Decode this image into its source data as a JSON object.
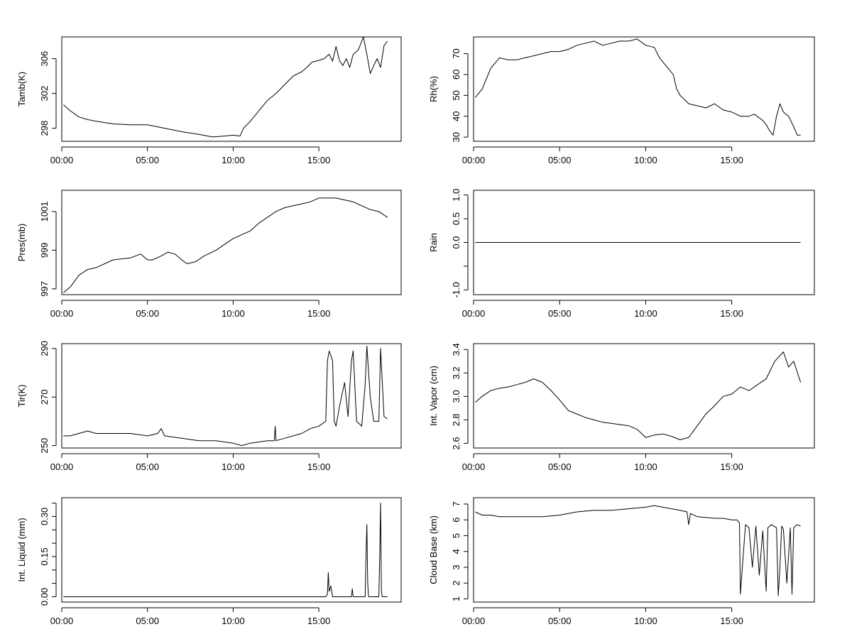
{
  "chart_data": [
    {
      "id": "tamb",
      "type": "line",
      "ylabel": "Tamb(K)",
      "xlim": [
        0,
        19.8
      ],
      "ylim": [
        296.5,
        308.5
      ],
      "xticks": [
        0,
        5,
        10,
        15
      ],
      "xticklabels": [
        "00:00",
        "05:00",
        "10:00",
        "15:00"
      ],
      "yticks": [
        298,
        302,
        306
      ],
      "yticklabels": [
        "298",
        "302",
        "306"
      ],
      "x": [
        0.1,
        0.5,
        1.0,
        1.5,
        2.0,
        3.0,
        4.0,
        5.0,
        6.0,
        7.0,
        8.0,
        8.8,
        9.5,
        10.0,
        10.4,
        10.6,
        11.0,
        11.5,
        12.0,
        12.5,
        13.0,
        13.5,
        14.0,
        14.3,
        14.6,
        15.0,
        15.3,
        15.6,
        15.8,
        16.0,
        16.2,
        16.4,
        16.6,
        16.8,
        17.0,
        17.3,
        17.6,
        17.8,
        18.0,
        18.2,
        18.4,
        18.6,
        18.8,
        19.0
      ],
      "y": [
        300.7,
        300.0,
        299.3,
        299.0,
        298.8,
        298.5,
        298.4,
        298.4,
        298.0,
        297.6,
        297.3,
        297.0,
        297.1,
        297.2,
        297.1,
        298.0,
        298.8,
        300.0,
        301.2,
        302.0,
        303.0,
        304.0,
        304.5,
        305.0,
        305.6,
        305.8,
        306.0,
        306.5,
        305.7,
        307.4,
        305.8,
        305.2,
        306.0,
        305.0,
        306.5,
        307.0,
        308.5,
        306.5,
        304.3,
        305.2,
        306.0,
        305.0,
        307.5,
        308.0
      ]
    },
    {
      "id": "rh",
      "type": "line",
      "ylabel": "Rh(%)",
      "xlim": [
        0,
        19.8
      ],
      "ylim": [
        28,
        78
      ],
      "xticks": [
        0,
        5,
        10,
        15
      ],
      "xticklabels": [
        "00:00",
        "05:00",
        "10:00",
        "15:00"
      ],
      "yticks": [
        30,
        40,
        50,
        60,
        70
      ],
      "yticklabels": [
        "30",
        "40",
        "50",
        "60",
        "70"
      ],
      "x": [
        0.1,
        0.5,
        1.0,
        1.5,
        2.0,
        2.5,
        3.0,
        3.5,
        4.0,
        4.5,
        5.0,
        5.5,
        6.0,
        6.5,
        7.0,
        7.5,
        8.0,
        8.5,
        9.0,
        9.5,
        10.0,
        10.5,
        10.8,
        11.2,
        11.6,
        11.8,
        12.0,
        12.5,
        13.0,
        13.5,
        14.0,
        14.5,
        15.0,
        15.5,
        16.0,
        16.3,
        16.8,
        17.0,
        17.2,
        17.4,
        17.6,
        17.8,
        18.0,
        18.3,
        18.6,
        18.8,
        19.0
      ],
      "y": [
        49,
        53,
        63,
        68,
        67,
        67,
        68,
        69,
        70,
        71,
        71,
        72,
        74,
        75,
        76,
        74,
        75,
        76,
        76,
        77,
        74,
        73,
        68,
        64,
        60,
        53,
        50,
        46,
        45,
        44,
        46,
        43,
        42,
        40,
        40,
        41,
        38,
        36,
        33,
        31,
        40,
        46,
        42,
        40,
        35,
        31,
        31
      ]
    },
    {
      "id": "pres",
      "type": "line",
      "ylabel": "Pres(mb)",
      "xlim": [
        0,
        19.8
      ],
      "ylim": [
        996.7,
        1002.1
      ],
      "xticks": [
        0,
        5,
        10,
        15
      ],
      "xticklabels": [
        "00:00",
        "05:00",
        "10:00",
        "15:00"
      ],
      "yticks": [
        997,
        999,
        1001
      ],
      "yticklabels": [
        "997",
        "999",
        "1001"
      ],
      "x": [
        0.1,
        0.5,
        1.0,
        1.5,
        2.0,
        3.0,
        4.0,
        4.6,
        5.0,
        5.3,
        5.8,
        6.2,
        6.6,
        7.0,
        7.3,
        7.8,
        8.3,
        9.0,
        9.5,
        10.0,
        10.5,
        11.0,
        11.5,
        12.0,
        12.5,
        13.0,
        13.5,
        14.0,
        14.5,
        15.0,
        15.5,
        16.0,
        16.5,
        17.0,
        17.5,
        18.0,
        18.5,
        19.0
      ],
      "y": [
        996.8,
        997.1,
        997.7,
        998.0,
        998.1,
        998.5,
        998.6,
        998.8,
        998.5,
        998.5,
        998.7,
        998.9,
        998.8,
        998.5,
        998.3,
        998.4,
        998.7,
        999.0,
        999.3,
        999.6,
        999.8,
        1000.0,
        1000.4,
        1000.7,
        1001.0,
        1001.2,
        1001.3,
        1001.4,
        1001.5,
        1001.7,
        1001.7,
        1001.7,
        1001.6,
        1001.5,
        1001.3,
        1001.1,
        1001.0,
        1000.7
      ]
    },
    {
      "id": "rain",
      "type": "line",
      "ylabel": "Rain",
      "xlim": [
        0,
        19.8
      ],
      "ylim": [
        -1.1,
        1.1
      ],
      "xticks": [
        0,
        5,
        10,
        15
      ],
      "xticklabels": [
        "00:00",
        "05:00",
        "10:00",
        "15:00"
      ],
      "yticks": [
        -1.0,
        -0.5,
        0.0,
        0.5,
        1.0
      ],
      "yticklabels": [
        "-1.0",
        "",
        "0.0",
        "0.5",
        "1.0"
      ],
      "x": [
        0.1,
        19.0
      ],
      "y": [
        0,
        0
      ]
    },
    {
      "id": "tir",
      "type": "line",
      "ylabel": "Tir(K)",
      "xlim": [
        0,
        19.8
      ],
      "ylim": [
        249,
        292
      ],
      "xticks": [
        0,
        5,
        10,
        15
      ],
      "xticklabels": [
        "00:00",
        "05:00",
        "10:00",
        "15:00"
      ],
      "yticks": [
        250,
        270,
        290
      ],
      "yticklabels": [
        "250",
        "270",
        "290"
      ],
      "x": [
        0.1,
        0.5,
        1.0,
        1.5,
        2.0,
        3.0,
        4.0,
        5.0,
        5.6,
        5.8,
        6.0,
        7.0,
        8.0,
        9.0,
        10.0,
        10.5,
        11.0,
        12.0,
        12.4,
        12.45,
        12.5,
        13.0,
        14.0,
        14.5,
        15.0,
        15.4,
        15.5,
        15.6,
        15.8,
        15.9,
        16.0,
        16.2,
        16.5,
        16.7,
        16.9,
        17.0,
        17.2,
        17.5,
        17.7,
        17.8,
        18.0,
        18.2,
        18.5,
        18.6,
        18.8,
        19.0
      ],
      "y": [
        254,
        254,
        255,
        256,
        255,
        255,
        255,
        254,
        255,
        257,
        254,
        253,
        252,
        252,
        251,
        250,
        251,
        252,
        252,
        258,
        252,
        253,
        255,
        257,
        258,
        260,
        285,
        289,
        285,
        260,
        258,
        266,
        276,
        262,
        285,
        289,
        260,
        258,
        275,
        291,
        270,
        260,
        260,
        290,
        262,
        261
      ]
    },
    {
      "id": "vapor",
      "type": "line",
      "ylabel": "Int. Vapor (cm)",
      "xlim": [
        0,
        19.8
      ],
      "ylim": [
        2.56,
        3.45
      ],
      "xticks": [
        0,
        5,
        10,
        15
      ],
      "xticklabels": [
        "00:00",
        "05:00",
        "10:00",
        "15:00"
      ],
      "yticks": [
        2.6,
        2.8,
        3.0,
        3.2,
        3.4
      ],
      "yticklabels": [
        "2.6",
        "2.8",
        "3.0",
        "3.2",
        "3.4"
      ],
      "x": [
        0.1,
        0.5,
        1.0,
        1.5,
        2.0,
        2.5,
        3.0,
        3.5,
        4.0,
        4.5,
        5.0,
        5.5,
        6.0,
        6.5,
        7.0,
        7.5,
        8.0,
        8.5,
        9.0,
        9.5,
        10.0,
        10.5,
        11.0,
        11.5,
        12.0,
        12.5,
        13.0,
        13.5,
        14.0,
        14.5,
        15.0,
        15.5,
        16.0,
        16.5,
        17.0,
        17.5,
        18.0,
        18.3,
        18.6,
        19.0
      ],
      "y": [
        2.95,
        3.0,
        3.05,
        3.07,
        3.08,
        3.1,
        3.12,
        3.15,
        3.12,
        3.05,
        2.97,
        2.88,
        2.85,
        2.82,
        2.8,
        2.78,
        2.77,
        2.76,
        2.75,
        2.72,
        2.65,
        2.67,
        2.68,
        2.66,
        2.63,
        2.65,
        2.75,
        2.85,
        2.92,
        3.0,
        3.02,
        3.08,
        3.05,
        3.1,
        3.15,
        3.3,
        3.38,
        3.25,
        3.3,
        3.12
      ]
    },
    {
      "id": "liquid",
      "type": "line",
      "ylabel": "Int. Liquid (mm)",
      "xlim": [
        0,
        19.8
      ],
      "ylim": [
        -0.02,
        0.37
      ],
      "xticks": [
        0,
        5,
        10,
        15
      ],
      "xticklabels": [
        "00:00",
        "05:00",
        "10:00",
        "15:00"
      ],
      "yticks": [
        0.0,
        0.05,
        0.1,
        0.15,
        0.2,
        0.25,
        0.3,
        0.35
      ],
      "yticklabels": [
        "0.00",
        "",
        "",
        "0.15",
        "",
        "",
        "0.30",
        ""
      ],
      "x": [
        0.1,
        15.4,
        15.5,
        15.55,
        15.6,
        15.7,
        15.8,
        16.9,
        16.95,
        17.0,
        17.7,
        17.75,
        17.8,
        17.85,
        17.9,
        18.5,
        18.55,
        18.6,
        18.65,
        18.7,
        19.0
      ],
      "y": [
        0,
        0,
        0.01,
        0.09,
        0.02,
        0.04,
        0,
        0,
        0.03,
        0,
        0,
        0.15,
        0.27,
        0.05,
        0,
        0,
        0.15,
        0.35,
        0.02,
        0,
        0
      ]
    },
    {
      "id": "cloudbase",
      "type": "line",
      "ylabel": "Cloud Base (km)",
      "xlim": [
        0,
        19.8
      ],
      "ylim": [
        0.8,
        7.4
      ],
      "xticks": [
        0,
        5,
        10,
        15
      ],
      "xticklabels": [
        "00:00",
        "05:00",
        "10:00",
        "15:00"
      ],
      "yticks": [
        1,
        2,
        3,
        4,
        5,
        6,
        7
      ],
      "yticklabels": [
        "1",
        "2",
        "3",
        "4",
        "5",
        "6",
        "7"
      ],
      "x": [
        0.1,
        0.5,
        1.0,
        1.5,
        2.0,
        3.0,
        4.0,
        5.0,
        6.0,
        7.0,
        8.0,
        9.0,
        10.0,
        10.5,
        11.0,
        11.5,
        12.0,
        12.4,
        12.5,
        12.6,
        13.0,
        14.0,
        14.5,
        15.0,
        15.3,
        15.45,
        15.5,
        15.8,
        16.0,
        16.2,
        16.4,
        16.6,
        16.8,
        17.0,
        17.1,
        17.3,
        17.6,
        17.7,
        17.8,
        17.9,
        18.0,
        18.2,
        18.4,
        18.5,
        18.6,
        18.8,
        19.0
      ],
      "y": [
        6.5,
        6.3,
        6.3,
        6.2,
        6.2,
        6.2,
        6.2,
        6.3,
        6.5,
        6.6,
        6.6,
        6.7,
        6.8,
        6.9,
        6.8,
        6.7,
        6.6,
        6.5,
        5.7,
        6.4,
        6.2,
        6.1,
        6.1,
        6.0,
        6.0,
        5.8,
        1.3,
        5.7,
        5.5,
        3.0,
        5.6,
        2.5,
        5.3,
        1.5,
        5.5,
        5.7,
        5.5,
        1.2,
        3.0,
        5.6,
        5.4,
        2.0,
        5.5,
        1.3,
        5.5,
        5.7,
        5.6
      ]
    }
  ]
}
